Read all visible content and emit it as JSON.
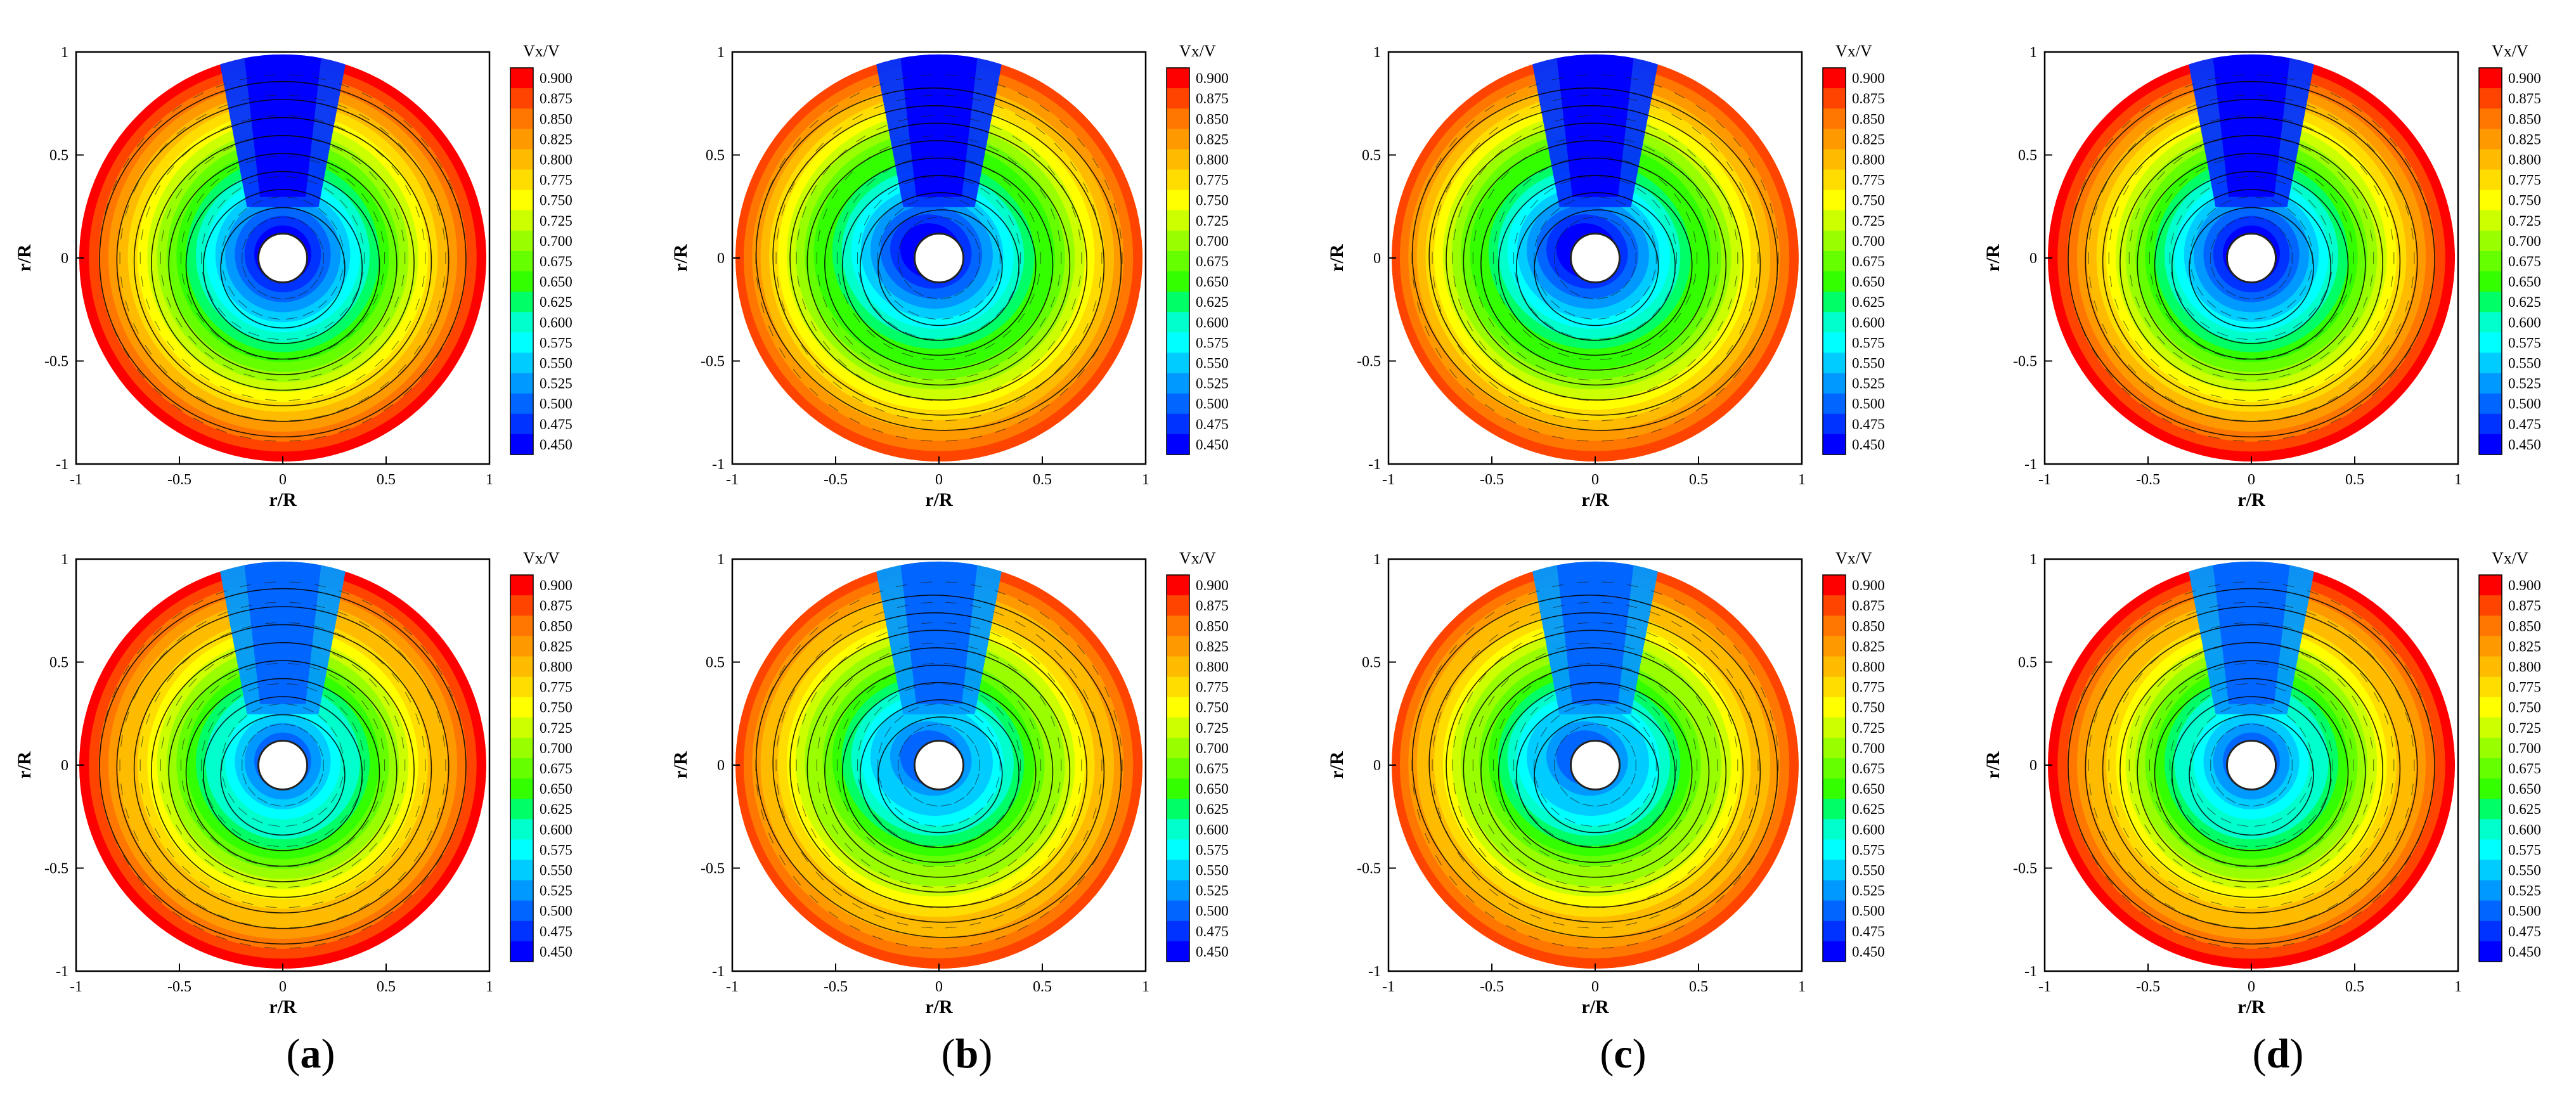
{
  "chart_data": [
    {
      "type": "heatmap",
      "panel": "a",
      "row": "top",
      "quantity": "Vx/V",
      "colorbar_title": "Vx/V",
      "colorbar_ticks": [
        0.9,
        0.875,
        0.85,
        0.825,
        0.8,
        0.775,
        0.75,
        0.725,
        0.7,
        0.675,
        0.65,
        0.625,
        0.6,
        0.575,
        0.55,
        0.525,
        0.5,
        0.475,
        0.45
      ],
      "clim": [
        0.45,
        0.9
      ],
      "xlabel": "r/R",
      "ylabel": "r/R",
      "xlim": [
        -1,
        1
      ],
      "ylim": [
        -1,
        1
      ],
      "xticks": [
        -1,
        -0.5,
        0,
        0.5,
        1
      ],
      "yticks": [
        -1,
        -0.5,
        0,
        0.5,
        1
      ],
      "min_value": 0.45,
      "rim_value": 0.9,
      "symmetric": true
    },
    {
      "type": "heatmap",
      "panel": "b",
      "row": "top",
      "quantity": "Vx/V",
      "colorbar_title": "Vx/V",
      "colorbar_ticks": [
        0.9,
        0.875,
        0.85,
        0.825,
        0.8,
        0.775,
        0.75,
        0.725,
        0.7,
        0.675,
        0.65,
        0.625,
        0.6,
        0.575,
        0.55,
        0.525,
        0.5,
        0.475,
        0.45
      ],
      "clim": [
        0.45,
        0.9
      ],
      "xlabel": "r/R",
      "ylabel": "r/R",
      "xlim": [
        -1,
        1
      ],
      "ylim": [
        -1,
        1
      ],
      "xticks": [
        -1,
        -0.5,
        0,
        0.5,
        1
      ],
      "yticks": [
        -1,
        -0.5,
        0,
        0.5,
        1
      ],
      "min_value": 0.45,
      "rim_value": 0.875,
      "symmetric": false
    },
    {
      "type": "heatmap",
      "panel": "c",
      "row": "top",
      "quantity": "Vx/V",
      "colorbar_title": "Vx/V",
      "colorbar_ticks": [
        0.9,
        0.875,
        0.85,
        0.825,
        0.8,
        0.775,
        0.75,
        0.725,
        0.7,
        0.675,
        0.65,
        0.625,
        0.6,
        0.575,
        0.55,
        0.525,
        0.5,
        0.475,
        0.45
      ],
      "clim": [
        0.45,
        0.9
      ],
      "xlabel": "r/R",
      "ylabel": "r/R",
      "xlim": [
        -1,
        1
      ],
      "ylim": [
        -1,
        1
      ],
      "xticks": [
        -1,
        -0.5,
        0,
        0.5,
        1
      ],
      "yticks": [
        -1,
        -0.5,
        0,
        0.5,
        1
      ],
      "min_value": 0.45,
      "rim_value": 0.875,
      "symmetric": false
    },
    {
      "type": "heatmap",
      "panel": "d",
      "row": "top",
      "quantity": "Vx/V",
      "colorbar_title": "Vx/V",
      "colorbar_ticks": [
        0.9,
        0.875,
        0.85,
        0.825,
        0.8,
        0.775,
        0.75,
        0.725,
        0.7,
        0.675,
        0.65,
        0.625,
        0.6,
        0.575,
        0.55,
        0.525,
        0.5,
        0.475,
        0.45
      ],
      "clim": [
        0.45,
        0.9
      ],
      "xlabel": "r/R",
      "ylabel": "r/R",
      "xlim": [
        -1,
        1
      ],
      "ylim": [
        -1,
        1
      ],
      "xticks": [
        -1,
        -0.5,
        0,
        0.5,
        1
      ],
      "yticks": [
        -1,
        -0.5,
        0,
        0.5,
        1
      ],
      "min_value": 0.45,
      "rim_value": 0.9,
      "symmetric": true
    },
    {
      "type": "heatmap",
      "panel": "a",
      "row": "bottom",
      "quantity": "Vx/V",
      "colorbar_title": "Vx/V",
      "colorbar_ticks": [
        0.9,
        0.875,
        0.85,
        0.825,
        0.8,
        0.775,
        0.75,
        0.725,
        0.7,
        0.675,
        0.65,
        0.625,
        0.6,
        0.575,
        0.55,
        0.525,
        0.5,
        0.475,
        0.45
      ],
      "clim": [
        0.45,
        0.9
      ],
      "xlabel": "r/R",
      "ylabel": "r/R",
      "xlim": [
        -1,
        1
      ],
      "ylim": [
        -1,
        1
      ],
      "xticks": [
        -1,
        -0.5,
        0,
        0.5,
        1
      ],
      "yticks": [
        -1,
        -0.5,
        0,
        0.5,
        1
      ],
      "min_value": 0.5,
      "rim_value": 0.9,
      "symmetric": true
    },
    {
      "type": "heatmap",
      "panel": "b",
      "row": "bottom",
      "quantity": "Vx/V",
      "colorbar_title": "Vx/V",
      "colorbar_ticks": [
        0.9,
        0.875,
        0.85,
        0.825,
        0.8,
        0.775,
        0.75,
        0.725,
        0.7,
        0.675,
        0.65,
        0.625,
        0.6,
        0.575,
        0.55,
        0.525,
        0.5,
        0.475,
        0.45
      ],
      "clim": [
        0.45,
        0.9
      ],
      "xlabel": "r/R",
      "ylabel": "r/R",
      "xlim": [
        -1,
        1
      ],
      "ylim": [
        -1,
        1
      ],
      "xticks": [
        -1,
        -0.5,
        0,
        0.5,
        1
      ],
      "yticks": [
        -1,
        -0.5,
        0,
        0.5,
        1
      ],
      "min_value": 0.5,
      "rim_value": 0.875,
      "symmetric": false
    },
    {
      "type": "heatmap",
      "panel": "c",
      "row": "bottom",
      "quantity": "Vx/V",
      "colorbar_title": "Vx/V",
      "colorbar_ticks": [
        0.9,
        0.875,
        0.85,
        0.825,
        0.8,
        0.775,
        0.75,
        0.725,
        0.7,
        0.675,
        0.65,
        0.625,
        0.6,
        0.575,
        0.55,
        0.525,
        0.5,
        0.475,
        0.45
      ],
      "clim": [
        0.45,
        0.9
      ],
      "xlabel": "r/R",
      "ylabel": "r/R",
      "xlim": [
        -1,
        1
      ],
      "ylim": [
        -1,
        1
      ],
      "xticks": [
        -1,
        -0.5,
        0,
        0.5,
        1
      ],
      "yticks": [
        -1,
        -0.5,
        0,
        0.5,
        1
      ],
      "min_value": 0.5,
      "rim_value": 0.875,
      "symmetric": false
    },
    {
      "type": "heatmap",
      "panel": "d",
      "row": "bottom",
      "quantity": "Vx/V",
      "colorbar_title": "Vx/V",
      "colorbar_ticks": [
        0.9,
        0.875,
        0.85,
        0.825,
        0.8,
        0.775,
        0.75,
        0.725,
        0.7,
        0.675,
        0.65,
        0.625,
        0.6,
        0.575,
        0.55,
        0.525,
        0.5,
        0.475,
        0.45
      ],
      "clim": [
        0.45,
        0.9
      ],
      "xlabel": "r/R",
      "ylabel": "r/R",
      "xlim": [
        -1,
        1
      ],
      "ylim": [
        -1,
        1
      ],
      "xticks": [
        -1,
        -0.5,
        0,
        0.5,
        1
      ],
      "yticks": [
        -1,
        -0.5,
        0,
        0.5,
        1
      ],
      "min_value": 0.5,
      "rim_value": 0.9,
      "symmetric": true
    }
  ],
  "colormap": [
    "#0000ff",
    "#0033ff",
    "#0066ff",
    "#0099ff",
    "#00ccff",
    "#00ffff",
    "#00ffcc",
    "#00ff66",
    "#33ff00",
    "#66ff00",
    "#99ff00",
    "#ccff00",
    "#ffff00",
    "#ffdd00",
    "#ffbb00",
    "#ff9900",
    "#ff7700",
    "#ff4400",
    "#ff0000"
  ],
  "labels": {
    "a": "a",
    "b": "b",
    "c": "c",
    "d": "d"
  }
}
